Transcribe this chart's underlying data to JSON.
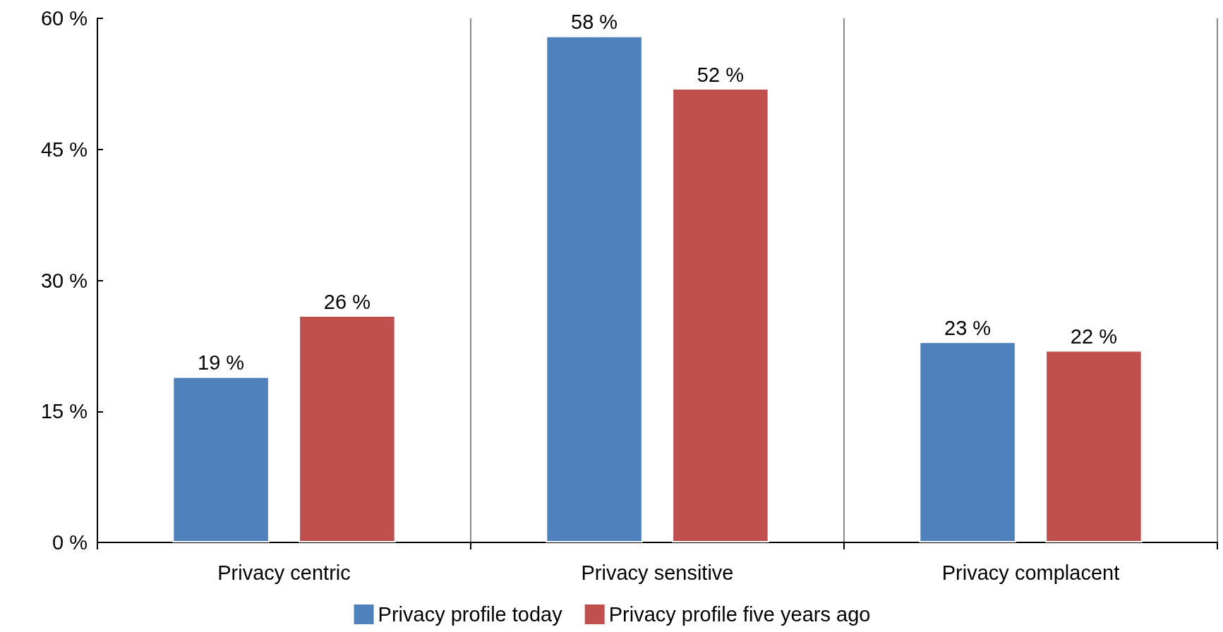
{
  "chart_data": {
    "type": "bar",
    "categories": [
      "Privacy centric",
      "Privacy sensitive",
      "Privacy complacent"
    ],
    "series": [
      {
        "name": "Privacy profile today",
        "color": "#4f81bd",
        "values": [
          19,
          58,
          23
        ],
        "value_labels": [
          "19 %",
          "58 %",
          "23 %"
        ]
      },
      {
        "name": "Privacy profile five years ago",
        "color": "#c0504d",
        "values": [
          26,
          52,
          22
        ],
        "value_labels": [
          "26 %",
          "52 %",
          "22 %"
        ]
      }
    ],
    "ylim": [
      0,
      60
    ],
    "yticks": [
      {
        "value": 0,
        "label": "0 %"
      },
      {
        "value": 15,
        "label": "15 %"
      },
      {
        "value": 30,
        "label": "30 %"
      },
      {
        "value": 45,
        "label": "45 %"
      },
      {
        "value": 60,
        "label": "60 %"
      }
    ],
    "grid": "x",
    "legend": "bottom"
  }
}
